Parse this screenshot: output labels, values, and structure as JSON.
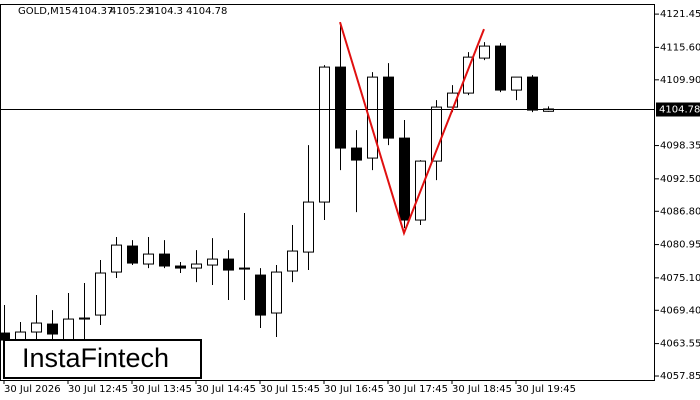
{
  "chart_data": {
    "type": "candlestick",
    "title": "GOLD,M15",
    "watermark": "InstaFintech",
    "categories": [
      "30 Jul 2026",
      null,
      null,
      null,
      "30 Jul 12:45",
      null,
      null,
      null,
      "30 Jul 13:45",
      null,
      null,
      null,
      "30 Jul 14:45",
      null,
      null,
      null,
      "30 Jul 15:45",
      null,
      null,
      null,
      "30 Jul 16:45",
      null,
      null,
      null,
      "30 Jul 17:45",
      null,
      null,
      null,
      "30 Jul 18:45",
      null,
      null,
      null,
      "30 Jul 19:45",
      null,
      null
    ],
    "open": [
      4065.4,
      4064.17,
      4065.58,
      4066.98,
      4064.17,
      4067.86,
      4068.56,
      4076.12,
      4080.69,
      4077.53,
      4079.28,
      4077.18,
      4076.82,
      4077.35,
      4078.4,
      4076.82,
      4075.59,
      4068.92,
      4076.3,
      4079.63,
      4088.42,
      4112.14,
      4097.91,
      4096.15,
      4110.38,
      4099.66,
      4085.26,
      4095.62,
      4105.11,
      4107.57,
      4113.72,
      4115.83,
      4108.1,
      4110.38,
      4104.37
    ],
    "high": [
      4070.32,
      4067.34,
      4072.08,
      4069.44,
      4072.43,
      4074.19,
      4078.23,
      4082.27,
      4081.74,
      4082.27,
      4081.74,
      4077.88,
      4079.98,
      4082.09,
      4079.98,
      4086.49,
      4076.82,
      4077.35,
      4084.38,
      4098.43,
      4112.49,
      4119.52,
      4101.07,
      4111.26,
      4112.84,
      4102.83,
      4095.8,
      4106.34,
      4108.98,
      4114.77,
      4116.53,
      4116.36,
      4110.38,
      4110.73,
      4105.23
    ],
    "low": [
      4063.29,
      4063.29,
      4064.17,
      4063.29,
      4063.29,
      4063.29,
      4066.81,
      4075.07,
      4077.35,
      4076.82,
      4076.82,
      4075.95,
      4074.36,
      4073.84,
      4071.2,
      4071.2,
      4066.28,
      4064.7,
      4074.36,
      4076.47,
      4085.26,
      4094.04,
      4086.66,
      4094.04,
      4098.43,
      4083.85,
      4084.38,
      4092.28,
      4104.23,
      4107.22,
      4113.37,
      4107.75,
      4106.34,
      4104.23,
      4104.3
    ],
    "close": [
      4064.17,
      4065.58,
      4067.16,
      4065.23,
      4067.86,
      4068.04,
      4075.95,
      4080.86,
      4077.7,
      4079.28,
      4077.18,
      4076.82,
      4077.53,
      4078.4,
      4076.47,
      4076.65,
      4068.56,
      4076.12,
      4079.81,
      4088.42,
      4112.14,
      4097.91,
      4095.8,
      4110.38,
      4099.66,
      4085.26,
      4095.62,
      4105.11,
      4107.57,
      4113.89,
      4115.83,
      4108.1,
      4110.38,
      4104.58,
      4104.78
    ],
    "current_price": 4104.78,
    "pattern": {
      "color": "#e01010",
      "index": [
        21,
        25,
        30
      ],
      "values": [
        4120.04,
        4082.97,
        4118.81
      ]
    },
    "ylim": [
      4057.15,
      4123.05
    ],
    "yticks": [
      {
        "value": 4121.45,
        "label": "4121.45"
      },
      {
        "value": 4115.6,
        "label": "4115.60"
      },
      {
        "value": 4109.9,
        "label": "4109.90"
      },
      {
        "value": 4098.35,
        "label": "4098.35"
      },
      {
        "value": 4092.5,
        "label": "4092.50"
      },
      {
        "value": 4086.8,
        "label": "4086.80"
      },
      {
        "value": 4080.95,
        "label": "4080.95"
      },
      {
        "value": 4075.1,
        "label": "4075.10"
      },
      {
        "value": 4069.4,
        "label": "4069.40"
      },
      {
        "value": 4063.55,
        "label": "4063.55"
      },
      {
        "value": 4057.85,
        "label": "4057.85"
      }
    ]
  }
}
